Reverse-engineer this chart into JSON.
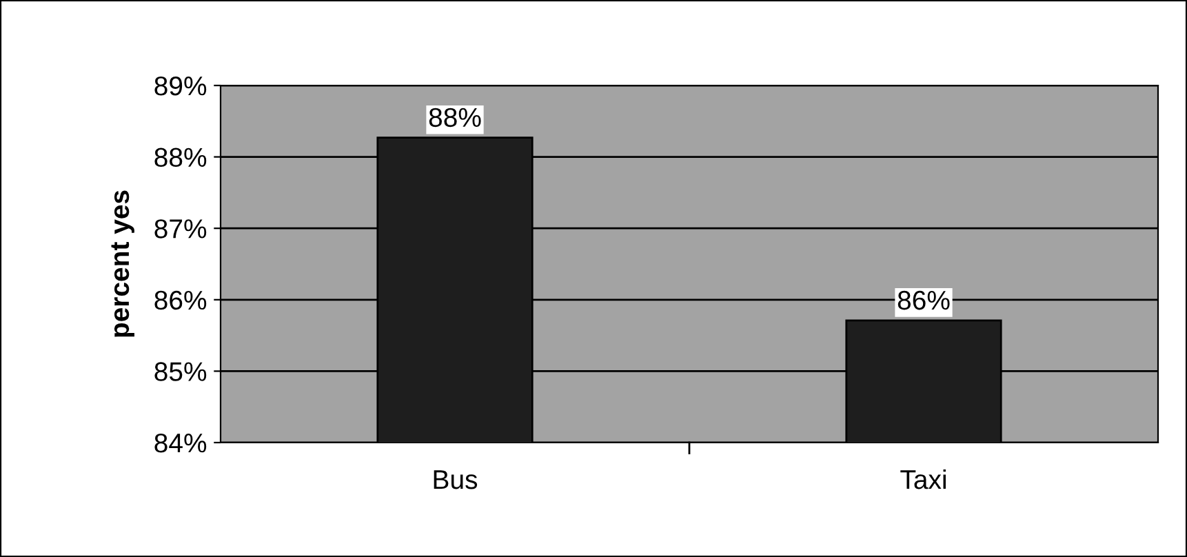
{
  "chart_data": {
    "type": "bar",
    "ylabel": "percent yes",
    "categories": [
      "Bus",
      "Taxi"
    ],
    "values": [
      88.27,
      85.71
    ],
    "value_labels": [
      "88%",
      "86%"
    ],
    "color": "#1e1e1e",
    "ylim": [
      84,
      89
    ],
    "yticks": [
      {
        "value": 84,
        "label": "84%"
      },
      {
        "value": 85,
        "label": "85%"
      },
      {
        "value": 86,
        "label": "86%"
      },
      {
        "value": 87,
        "label": "87%"
      },
      {
        "value": 88,
        "label": "88%"
      },
      {
        "value": 89,
        "label": "89%"
      }
    ],
    "grid": "y",
    "legend": false
  }
}
